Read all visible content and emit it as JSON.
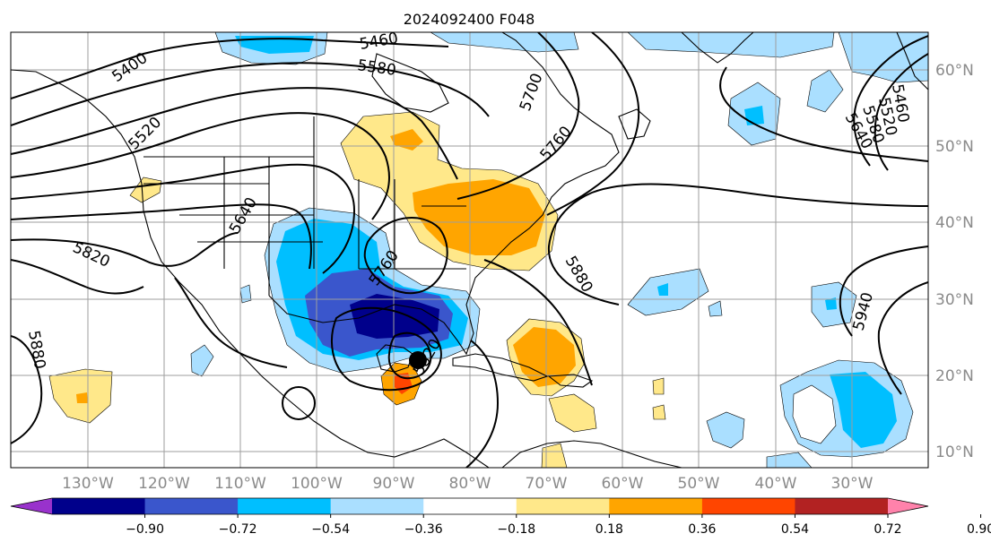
{
  "title": "2024092400 F048",
  "map": {
    "lon_labels": [
      "130°W",
      "120°W",
      "110°W",
      "100°W",
      "90°W",
      "80°W",
      "70°W",
      "60°W",
      "50°W",
      "40°W",
      "30°W"
    ],
    "lat_labels": [
      "60°N",
      "50°N",
      "40°N",
      "30°N",
      "20°N",
      "10°N"
    ],
    "contour_labels": [
      "5400",
      "5460",
      "5520",
      "5580",
      "5640",
      "5700",
      "5760",
      "5820",
      "5880",
      "5940",
      "5460",
      "5520",
      "5580",
      "5640",
      "5820",
      "5880",
      "5880",
      "5820",
      "5820",
      "5760"
    ],
    "storm_center_marker": "storm-center"
  },
  "colorbar": {
    "colors": [
      "#9932cc",
      "#00008b",
      "#3a56cc",
      "#00bfff",
      "#aadfff",
      "#ffffff",
      "#ffe88a",
      "#ffa500",
      "#ff4500",
      "#b22222",
      "#ff82ab"
    ],
    "tick_labels": [
      "−0.90",
      "−0.72",
      "−0.54",
      "−0.36",
      "−0.18",
      "0.18",
      "0.36",
      "0.54",
      "0.72",
      "0.90"
    ]
  }
}
